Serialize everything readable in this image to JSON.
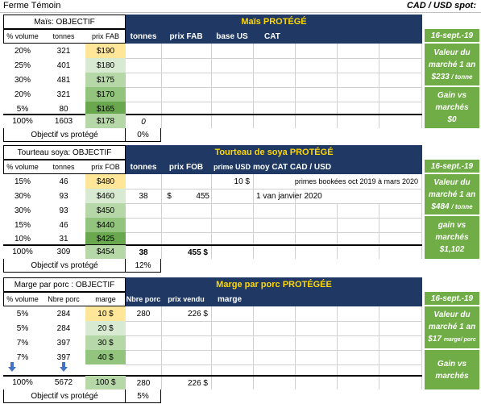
{
  "top": {
    "left_title": "Ferme Témoin",
    "right_title": "CAD / USD spot:"
  },
  "mais": {
    "obj_title": "Maïs: OBJECTIF",
    "col_headers": [
      "% volume",
      "tonnes",
      "prix FAB"
    ],
    "rows": [
      [
        "20%",
        "321",
        "$190"
      ],
      [
        "25%",
        "401",
        "$180"
      ],
      [
        "30%",
        "481",
        "$175"
      ],
      [
        "20%",
        "321",
        "$170"
      ],
      [
        "5%",
        "80",
        "$165"
      ]
    ],
    "total": [
      "100%",
      "1603",
      "$178"
    ],
    "protege_title": "Maïs  PROTÉGÉ",
    "protege_headers": [
      "tonnes",
      "prix  FAB",
      "base US",
      "CAT"
    ],
    "protege_total_tonnes": "0",
    "objectif_label": "Objectif vs protégé",
    "objectif_value": "0%",
    "date": "16-sept.-19",
    "valeur_label_1": "Valeur du",
    "valeur_label_2": "marché 1 an",
    "valeur_value": "$233",
    "valeur_unit": "/ tonne",
    "gain_label_1": "Gain vs",
    "gain_label_2": "marchés",
    "gain_value": "$0"
  },
  "soya": {
    "obj_title": "Tourteau soya: OBJECTIF",
    "col_headers": [
      "% volume",
      "tonnes",
      "prix FOB"
    ],
    "rows": [
      [
        "15%",
        "46",
        "$480"
      ],
      [
        "30%",
        "93",
        "$460"
      ],
      [
        "30%",
        "93",
        "$450"
      ],
      [
        "15%",
        "46",
        "$440"
      ],
      [
        "10%",
        "31",
        "$425"
      ]
    ],
    "total": [
      "100%",
      "309",
      "$454"
    ],
    "protege_title": "Tourteau de soya  PROTÉGÉ",
    "protege_headers": [
      "tonnes",
      "prix  FOB",
      "prime USD",
      "moy CAT  CAD / USD"
    ],
    "prime_value": "10 $",
    "prime_note": "primes bookées oct 2019 à mars 2020",
    "row2_tonnes": "38",
    "row2_price_sign": "$",
    "row2_price": "455",
    "row2_note": "1 van   janvier 2020",
    "total_tonnes": "38",
    "total_price": "455 $",
    "objectif_label": "Objectif vs protégé",
    "objectif_value": "12%",
    "date": "16-sept.-19",
    "valeur_label_1": "Valeur du",
    "valeur_label_2": "marché 1 an",
    "valeur_value": "$484",
    "valeur_unit": "/ tonne",
    "gain_label_1": "gain vs",
    "gain_label_2": "marchés",
    "gain_value": "$1,102"
  },
  "porc": {
    "obj_title": "Marge par porc : OBJECTIF",
    "col_headers": [
      "% volume",
      "Nbre porc",
      "marge"
    ],
    "rows": [
      [
        "5%",
        "284",
        "10 $"
      ],
      [
        "5%",
        "284",
        "20 $"
      ],
      [
        "7%",
        "397",
        "30 $"
      ],
      [
        "7%",
        "397",
        "40 $"
      ]
    ],
    "total": [
      "100%",
      "5672",
      "100 $"
    ],
    "protege_title": "Marge par porc PROTÉGÉE",
    "protege_headers": [
      "Nbre porc",
      "prix vendu",
      "marge"
    ],
    "row1_porc": "280",
    "row1_prix": "226 $",
    "total_porc": "280",
    "total_prix": "226 $",
    "objectif_label": "Objectif vs protégé",
    "objectif_value": "5%",
    "date": "16-sept.-19",
    "valeur_label_1": "Valeur du",
    "valeur_label_2": "marché 1 an",
    "valeur_value": "$17",
    "valeur_unit": "marge/ porc",
    "gain_label_1": "Gain vs",
    "gain_label_2": "marchés",
    "gain_value": ""
  },
  "icons": {
    "arrow": "down-arrow-icon"
  },
  "colors": {
    "navy": "#1f3864",
    "title_yellow": "#ffd700",
    "green": "#70ad47",
    "yellow": "#ffe699"
  }
}
